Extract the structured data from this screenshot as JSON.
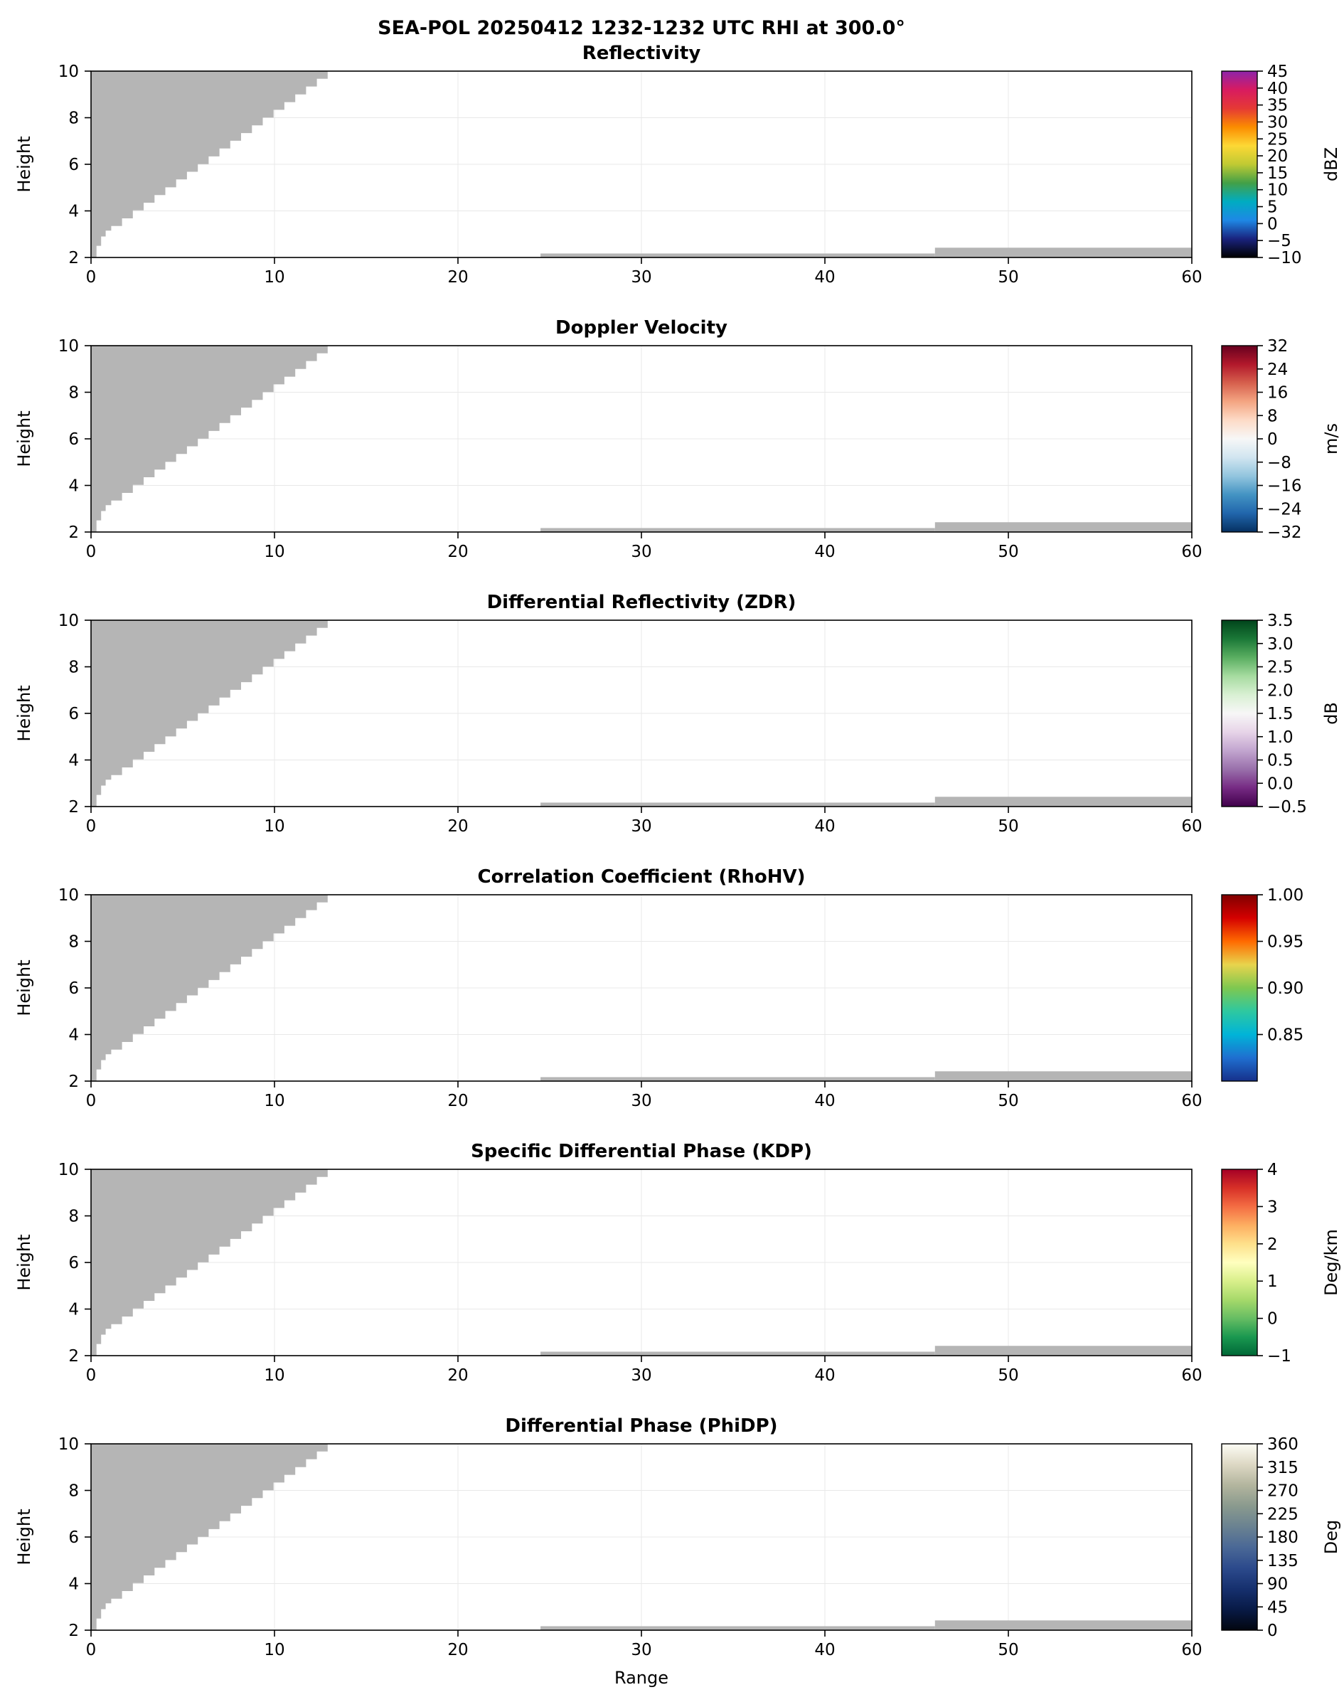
{
  "chart_data": {
    "type": "heatmap",
    "subtype": "radar-rhi-multipanel",
    "suptitle": "SEA-POL 20250412 1232-1232 UTC RHI at 300.0°",
    "x": {
      "label": "Range",
      "min": 0,
      "max": 60,
      "tick_values": [
        0,
        10,
        20,
        30,
        40,
        50,
        60
      ],
      "ticks": [
        "0",
        "10",
        "20",
        "30",
        "40",
        "50",
        "60"
      ]
    },
    "y": {
      "label": "Height",
      "min": 2,
      "max": 10,
      "tick_values": [
        2,
        4,
        6,
        8,
        10
      ],
      "ticks": [
        "2",
        "4",
        "6",
        "8",
        "10"
      ]
    },
    "mask": {
      "color": "#b5b5b5",
      "wedge_points": [
        [
          0.0,
          2.0
        ],
        [
          0.3,
          2.5
        ],
        [
          0.55,
          2.9
        ],
        [
          0.8,
          3.15
        ],
        [
          1.1,
          3.35
        ],
        [
          1.69,
          3.68
        ],
        [
          2.28,
          4.02
        ],
        [
          2.87,
          4.35
        ],
        [
          3.46,
          4.68
        ],
        [
          4.05,
          5.01
        ],
        [
          4.64,
          5.35
        ],
        [
          5.23,
          5.68
        ],
        [
          5.82,
          6.01
        ],
        [
          6.41,
          6.34
        ],
        [
          7.0,
          6.68
        ],
        [
          7.59,
          7.01
        ],
        [
          8.18,
          7.34
        ],
        [
          8.77,
          7.67
        ],
        [
          9.36,
          8.01
        ],
        [
          9.95,
          8.34
        ],
        [
          10.54,
          8.67
        ],
        [
          11.13,
          9.0
        ],
        [
          11.72,
          9.34
        ],
        [
          12.31,
          9.67
        ],
        [
          12.9,
          10.0
        ],
        [
          0.0,
          10.0
        ]
      ],
      "strips": [
        {
          "x0": 24.5,
          "x1": 46.0,
          "y0": 2.0,
          "y1": 2.17
        },
        {
          "x0": 46.0,
          "x1": 60.0,
          "y0": 2.0,
          "y1": 2.42
        }
      ]
    },
    "panels": [
      {
        "title": "Reflectivity",
        "units": "dBZ",
        "cmin": -10,
        "cmax": 45,
        "ctick_values": [
          45,
          40,
          35,
          30,
          25,
          20,
          15,
          10,
          5,
          0,
          -5,
          -10
        ],
        "cticks": [
          "45",
          "40",
          "35",
          "30",
          "25",
          "20",
          "15",
          "10",
          "5",
          "0",
          "−5",
          "−10"
        ],
        "colors_top_to_bottom": [
          "#8e24aa",
          "#d81b60",
          "#e53935",
          "#fb8c00",
          "#fdd835",
          "#c0ca33",
          "#43a047",
          "#00acc1",
          "#1e88e5",
          "#1a237e",
          "#000000"
        ]
      },
      {
        "title": "Doppler Velocity",
        "units": "m/s",
        "cmin": -32,
        "cmax": 32,
        "ctick_values": [
          32,
          24,
          16,
          8,
          0,
          -8,
          -16,
          -24,
          -32
        ],
        "cticks": [
          "32",
          "24",
          "16",
          "8",
          "0",
          "−8",
          "−16",
          "−24",
          "−32"
        ],
        "colors_top_to_bottom": [
          "#67001f",
          "#b2182b",
          "#d6604d",
          "#f4a582",
          "#fddbc7",
          "#f7f7f7",
          "#d1e5f0",
          "#92c5de",
          "#4393c3",
          "#2166ac",
          "#053061"
        ]
      },
      {
        "title": "Differential Reflectivity (ZDR)",
        "units": "dB",
        "cmin": -0.5,
        "cmax": 3.5,
        "ctick_values": [
          3.5,
          3.0,
          2.5,
          2.0,
          1.5,
          1.0,
          0.5,
          0.0,
          -0.5
        ],
        "cticks": [
          "3.5",
          "3.0",
          "2.5",
          "2.0",
          "1.5",
          "1.0",
          "0.5",
          "0.0",
          "−0.5"
        ],
        "colors_top_to_bottom": [
          "#00441b",
          "#1b7837",
          "#5aae61",
          "#a6dba0",
          "#d9f0d3",
          "#f7f7f7",
          "#e7d4e8",
          "#c2a5cf",
          "#9970ab",
          "#762a83",
          "#40004b"
        ]
      },
      {
        "title": "Correlation Coefficient (RhoHV)",
        "units": "",
        "cmin": 0.8,
        "cmax": 1.0,
        "ctick_values": [
          1.0,
          0.95,
          0.9,
          0.85
        ],
        "cticks": [
          "1.00",
          "0.95",
          "0.90",
          "0.85"
        ],
        "colors_top_to_bottom": [
          "#800000",
          "#d40000",
          "#ff6a00",
          "#e8d44d",
          "#7ec850",
          "#2ec8a0",
          "#00b4d8",
          "#1f6fd0",
          "#16308a"
        ]
      },
      {
        "title": "Specific Differential Phase (KDP)",
        "units": "Deg/km",
        "cmin": -1,
        "cmax": 4,
        "ctick_values": [
          4,
          3,
          2,
          1,
          0,
          -1
        ],
        "cticks": [
          "4",
          "3",
          "2",
          "1",
          "0",
          "−1"
        ],
        "colors_top_to_bottom": [
          "#a50026",
          "#d73027",
          "#f46d43",
          "#fdae61",
          "#fee08b",
          "#ffffbf",
          "#d9ef8b",
          "#a6d96a",
          "#66bd63",
          "#1a9850",
          "#006837"
        ]
      },
      {
        "title": "Differential Phase (PhiDP)",
        "units": "Deg",
        "cmin": 0,
        "cmax": 360,
        "ctick_values": [
          360,
          315,
          270,
          225,
          180,
          135,
          90,
          45,
          0
        ],
        "cticks": [
          "360",
          "315",
          "270",
          "225",
          "180",
          "135",
          "90",
          "45",
          "0"
        ],
        "colors_top_to_bottom": [
          "#fdfdf5",
          "#ddd8c4",
          "#b3b59e",
          "#8a9a8e",
          "#6a8291",
          "#4a6896",
          "#2c4a8c",
          "#16306e",
          "#081a46",
          "#02060f"
        ]
      }
    ]
  }
}
